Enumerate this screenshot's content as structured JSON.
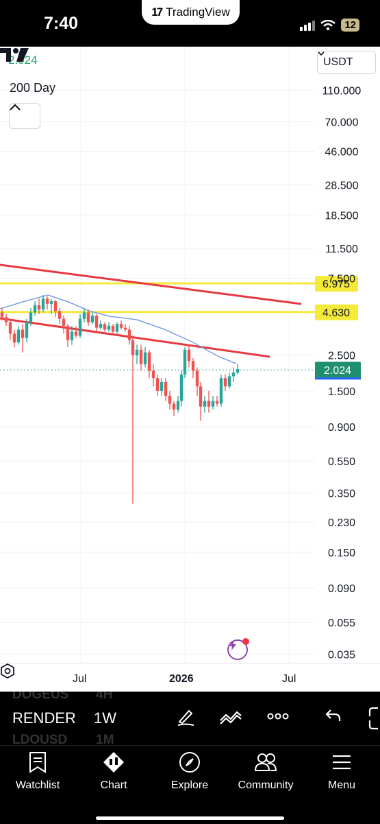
{
  "status_bar": {
    "time": "7:40",
    "battery": "12",
    "app_pill": "TradingView"
  },
  "chart": {
    "ma_value": "2.024",
    "indicator_name": "200 Day",
    "currency": "USDT",
    "price_labels": [
      "110.000",
      "70.000",
      "46.000",
      "28.500",
      "18.500",
      "11.500",
      "7.500",
      "2.500",
      "1.500",
      "0.900",
      "0.550",
      "0.350",
      "0.230",
      "0.150",
      "0.090",
      "0.055",
      "0.035"
    ],
    "level_badges": {
      "upper": "6.975",
      "lower": "4.630",
      "current": "2.024"
    },
    "time_labels": {
      "jul1": "Jul",
      "year": "2026",
      "jul2": "Jul"
    },
    "colors": {
      "up": "#26a69a",
      "down": "#ef5350",
      "trendline": "#e53940",
      "level": "#f5ea3a",
      "ma": "#7b9ee8"
    }
  },
  "toolbar": {
    "symbol": "RENDER",
    "interval": "1W",
    "ghost_symbol_1": "DOGEUS",
    "ghost_symbol_2": "LDOUSD",
    "ghost_interval_1": "4H",
    "ghost_interval_2": "1M"
  },
  "nav": [
    {
      "label": "Watchlist",
      "icon": "watchlist-icon"
    },
    {
      "label": "Chart",
      "icon": "chart-icon"
    },
    {
      "label": "Explore",
      "icon": "compass-icon"
    },
    {
      "label": "Community",
      "icon": "community-icon"
    },
    {
      "label": "Menu",
      "icon": "menu-icon"
    }
  ]
}
